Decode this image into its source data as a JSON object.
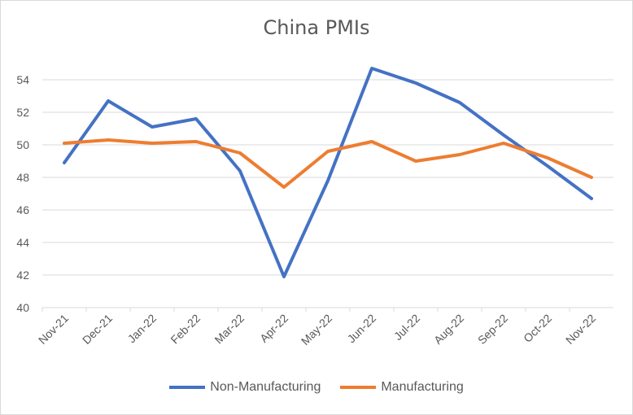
{
  "chart_data": {
    "type": "line",
    "title": "China PMIs",
    "categories": [
      "Nov-21",
      "Dec-21",
      "Jan-22",
      "Feb-22",
      "Mar-22",
      "Apr-22",
      "May-22",
      "Jun-22",
      "Jul-22",
      "Aug-22",
      "Sep-22",
      "Oct-22",
      "Nov-22"
    ],
    "series": [
      {
        "name": "Non-Manufacturing",
        "color": "#4472c4",
        "values": [
          48.9,
          52.7,
          51.1,
          51.6,
          48.4,
          41.9,
          47.8,
          54.7,
          53.8,
          52.6,
          50.6,
          48.7,
          46.7
        ]
      },
      {
        "name": "Manufacturing",
        "color": "#ed7d31",
        "values": [
          50.1,
          50.3,
          50.1,
          50.2,
          49.5,
          47.4,
          49.6,
          50.2,
          49.0,
          49.4,
          50.1,
          49.2,
          48.0
        ]
      }
    ],
    "yticks": [
      "40",
      "42",
      "44",
      "46",
      "48",
      "50",
      "52",
      "54"
    ],
    "ylim": [
      40,
      56
    ],
    "grid": true,
    "legend": "bottom"
  }
}
